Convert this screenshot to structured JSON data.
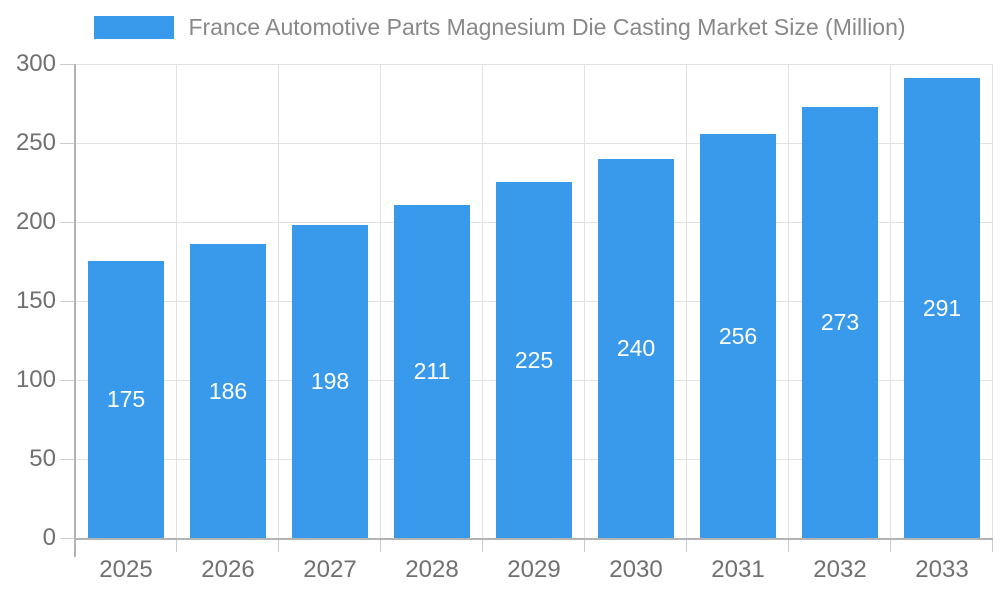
{
  "chart_data": {
    "type": "bar",
    "title": "France Automotive Parts Magnesium Die Casting Market Size (Million)",
    "categories": [
      "2025",
      "2026",
      "2027",
      "2028",
      "2029",
      "2030",
      "2031",
      "2032",
      "2033"
    ],
    "series": [
      {
        "name": "France Automotive Parts Magnesium Die Casting Market Size (Million)",
        "values": [
          175,
          186,
          198,
          211,
          225,
          240,
          256,
          273,
          291
        ]
      }
    ],
    "xlabel": "",
    "ylabel": "",
    "ylim": [
      0,
      300
    ],
    "y_ticks": [
      0,
      50,
      100,
      150,
      200,
      250,
      300
    ],
    "grid": true,
    "legend_position": "top",
    "bar_labels_shown": true,
    "colors": {
      "bar": "#399aec",
      "bar_value_label": "#ffffff",
      "axis_label": "#707070",
      "legend_title": "#888888",
      "gridline": "#e2e2e2",
      "axis_line": "#b3b3b3",
      "background": "#ffffff"
    }
  }
}
